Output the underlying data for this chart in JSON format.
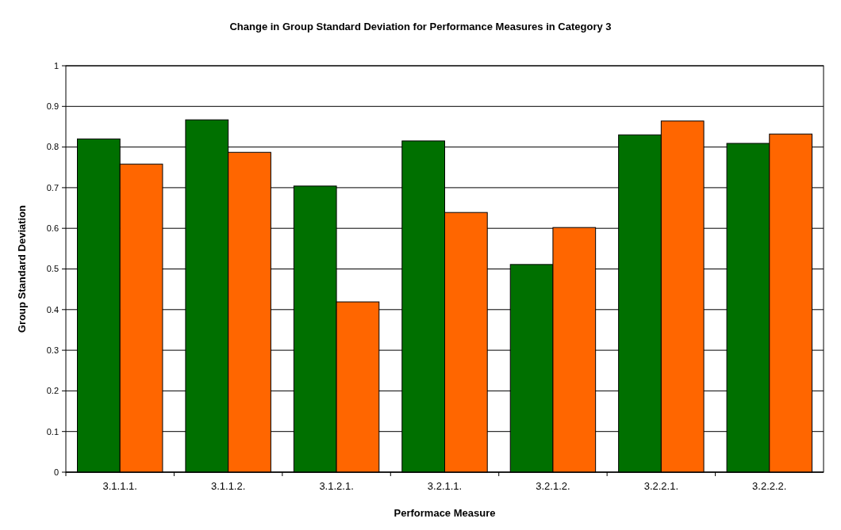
{
  "chart_data": {
    "type": "bar",
    "title": "Change in Group Standard Deviation for Performance Measures in Category 3",
    "xlabel": "Performace Measure",
    "ylabel": "Group Standard Deviation",
    "categories": [
      "3.1.1.1.",
      "3.1.1.2.",
      "3.1.2.1.",
      "3.2.1.1.",
      "3.2.1.2.",
      "3.2.2.1.",
      "3.2.2.2."
    ],
    "series": [
      {
        "color": "#007000",
        "values": [
          0.82,
          0.867,
          0.704,
          0.815,
          0.511,
          0.83,
          0.809
        ]
      },
      {
        "color": "#ff6600",
        "values": [
          0.758,
          0.787,
          0.419,
          0.639,
          0.602,
          0.864,
          0.832
        ]
      }
    ],
    "ylim": [
      0,
      1
    ],
    "yticks": [
      0,
      0.1,
      0.2,
      0.3,
      0.4,
      0.5,
      0.6,
      0.7,
      0.8,
      0.9,
      1
    ],
    "grid": "y"
  }
}
